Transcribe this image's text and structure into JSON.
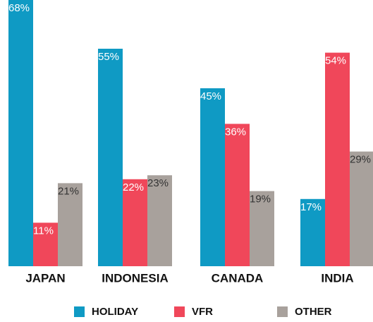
{
  "chart_data": {
    "type": "bar",
    "categories": [
      "JAPAN",
      "INDONESIA",
      "CANADA",
      "INDIA"
    ],
    "series": [
      {
        "name": "HOLIDAY",
        "color": "#0f9ac4",
        "values": [
          68,
          55,
          45,
          17
        ],
        "value_labels": [
          "68%",
          "55%",
          "45%",
          "17%"
        ]
      },
      {
        "name": "VFR",
        "color": "#f0475a",
        "values": [
          11,
          22,
          36,
          54
        ],
        "value_labels": [
          "11%",
          "22%",
          "36%",
          "54%"
        ]
      },
      {
        "name": "OTHER",
        "color": "#a8a19c",
        "values": [
          21,
          23,
          19,
          29
        ],
        "value_labels": [
          "21%",
          "23%",
          "19%",
          "29%"
        ]
      }
    ]
  }
}
